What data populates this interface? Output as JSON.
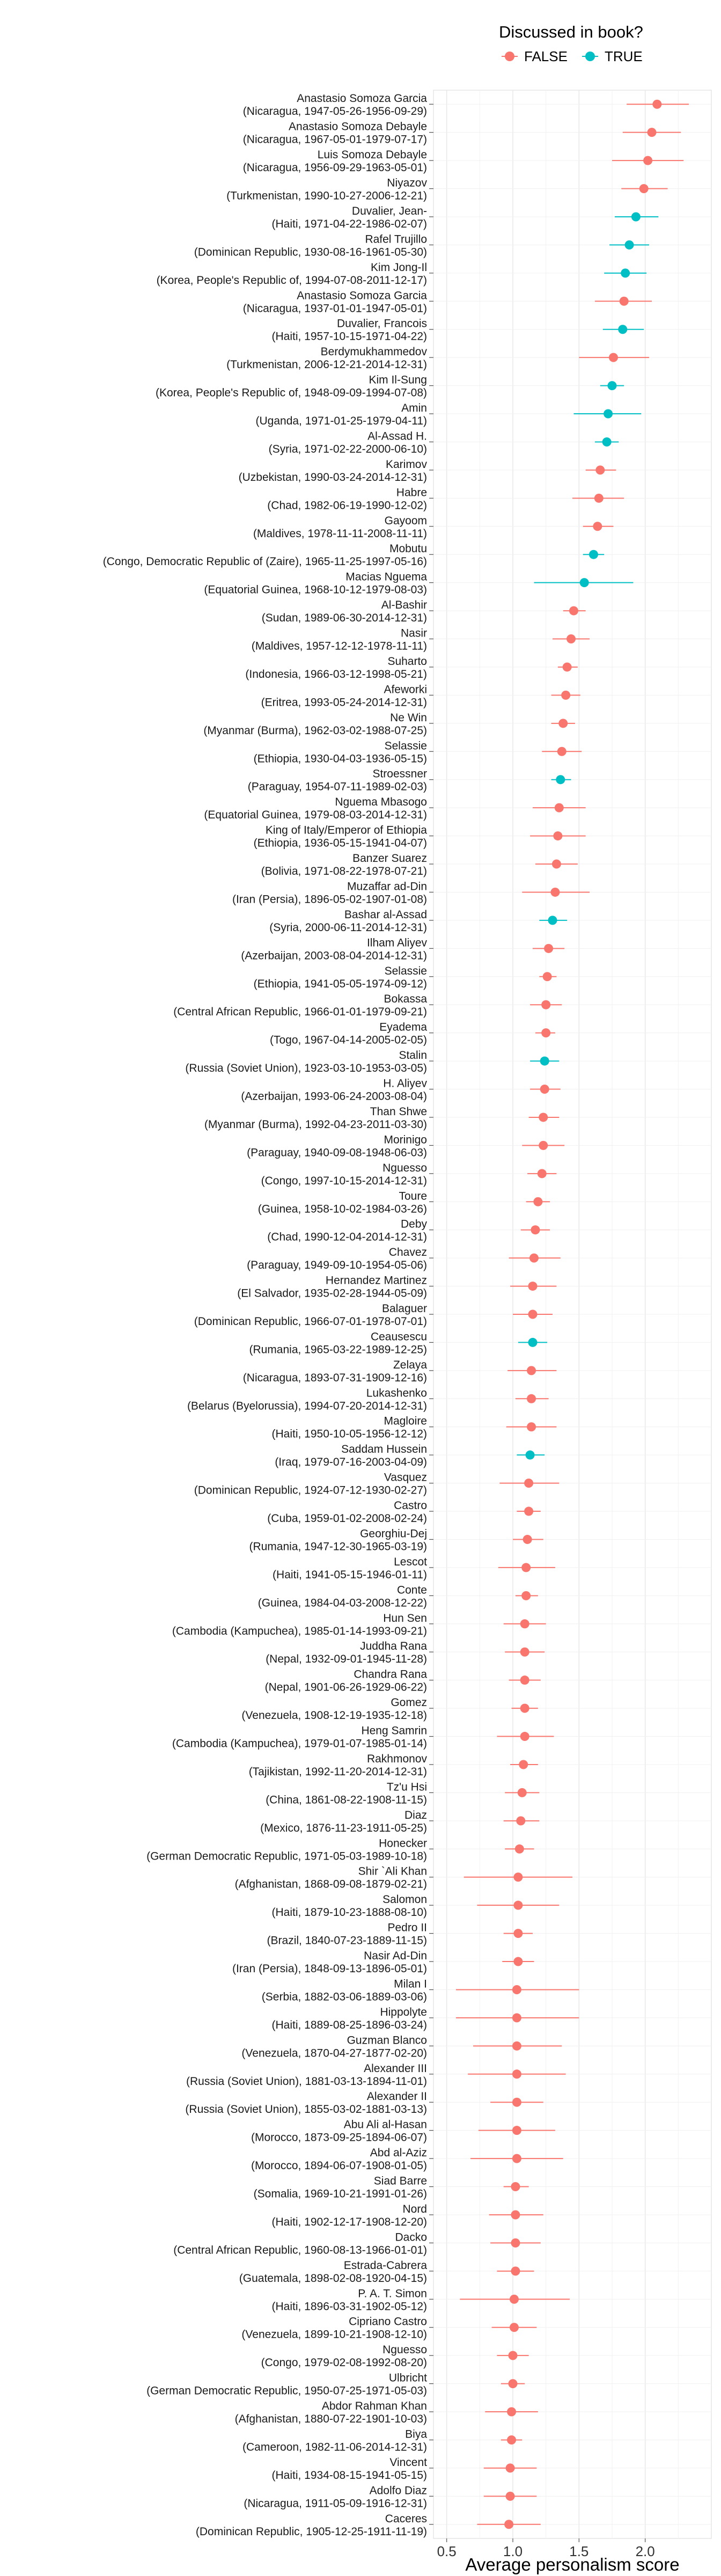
{
  "chart_data": {
    "type": "scatter",
    "xlabel": "Average personalism score",
    "ylabel": "",
    "xlim": [
      0.4,
      2.5
    ],
    "xticks": [
      0.5,
      1.0,
      1.5,
      2.0
    ],
    "xtick_labels": [
      "0.5",
      "1.0",
      "1.5",
      "2.0"
    ],
    "grid": true,
    "legend": {
      "title": "Discussed in book?",
      "placement": "top-center",
      "entries": [
        {
          "label": "FALSE",
          "color": "#F8766D"
        },
        {
          "label": "TRUE",
          "color": "#00BFC4"
        }
      ]
    },
    "points": [
      {
        "name": "Anastasio Somoza Garcia",
        "detail": "(Nicaragua, 1947-05-26-1956-09-29)",
        "x": 2.09,
        "lo": 1.86,
        "hi": 2.33,
        "discussed": "FALSE"
      },
      {
        "name": "Anastasio Somoza Debayle",
        "detail": "(Nicaragua, 1967-05-01-1979-07-17)",
        "x": 2.05,
        "lo": 1.83,
        "hi": 2.27,
        "discussed": "FALSE"
      },
      {
        "name": "Luis Somoza Debayle",
        "detail": "(Nicaragua, 1956-09-29-1963-05-01)",
        "x": 2.02,
        "lo": 1.75,
        "hi": 2.29,
        "discussed": "FALSE"
      },
      {
        "name": "Niyazov",
        "detail": "(Turkmenistan, 1990-10-27-2006-12-21)",
        "x": 1.99,
        "lo": 1.82,
        "hi": 2.17,
        "discussed": "FALSE"
      },
      {
        "name": "Duvalier, Jean-",
        "detail": "(Haiti, 1971-04-22-1986-02-07)",
        "x": 1.93,
        "lo": 1.77,
        "hi": 2.1,
        "discussed": "TRUE"
      },
      {
        "name": "Rafel Trujillo",
        "detail": "(Dominican Republic, 1930-08-16-1961-05-30)",
        "x": 1.88,
        "lo": 1.73,
        "hi": 2.03,
        "discussed": "TRUE"
      },
      {
        "name": "Kim Jong-Il",
        "detail": "(Korea, People's Republic of, 1994-07-08-2011-12-17)",
        "x": 1.85,
        "lo": 1.69,
        "hi": 2.01,
        "discussed": "TRUE"
      },
      {
        "name": "Anastasio Somoza Garcia",
        "detail": "(Nicaragua, 1937-01-01-1947-05-01)",
        "x": 1.84,
        "lo": 1.62,
        "hi": 2.05,
        "discussed": "FALSE"
      },
      {
        "name": "Duvalier, Francois",
        "detail": "(Haiti, 1957-10-15-1971-04-22)",
        "x": 1.83,
        "lo": 1.68,
        "hi": 1.99,
        "discussed": "TRUE"
      },
      {
        "name": "Berdymukhammedov",
        "detail": "(Turkmenistan, 2006-12-21-2014-12-31)",
        "x": 1.76,
        "lo": 1.5,
        "hi": 2.03,
        "discussed": "FALSE"
      },
      {
        "name": "Kim Il-Sung",
        "detail": "(Korea, People's Republic of, 1948-09-09-1994-07-08)",
        "x": 1.75,
        "lo": 1.66,
        "hi": 1.84,
        "discussed": "TRUE"
      },
      {
        "name": "Amin",
        "detail": "(Uganda, 1971-01-25-1979-04-11)",
        "x": 1.72,
        "lo": 1.46,
        "hi": 1.97,
        "discussed": "TRUE"
      },
      {
        "name": "Al-Assad H.",
        "detail": "(Syria, 1971-02-22-2000-06-10)",
        "x": 1.71,
        "lo": 1.62,
        "hi": 1.8,
        "discussed": "TRUE"
      },
      {
        "name": "Karimov",
        "detail": "(Uzbekistan, 1990-03-24-2014-12-31)",
        "x": 1.66,
        "lo": 1.55,
        "hi": 1.78,
        "discussed": "FALSE"
      },
      {
        "name": "Habre",
        "detail": "(Chad, 1982-06-19-1990-12-02)",
        "x": 1.65,
        "lo": 1.45,
        "hi": 1.84,
        "discussed": "FALSE"
      },
      {
        "name": "Gayoom",
        "detail": "(Maldives, 1978-11-11-2008-11-11)",
        "x": 1.64,
        "lo": 1.53,
        "hi": 1.76,
        "discussed": "FALSE"
      },
      {
        "name": "Mobutu",
        "detail": "(Congo, Democratic Republic of (Zaire), 1965-11-25-1997-05-16)",
        "x": 1.61,
        "lo": 1.53,
        "hi": 1.69,
        "discussed": "TRUE"
      },
      {
        "name": "Macias Nguema",
        "detail": "(Equatorial Guinea, 1968-10-12-1979-08-03)",
        "x": 1.54,
        "lo": 1.16,
        "hi": 1.91,
        "discussed": "TRUE"
      },
      {
        "name": "Al-Bashir",
        "detail": "(Sudan, 1989-06-30-2014-12-31)",
        "x": 1.46,
        "lo": 1.38,
        "hi": 1.55,
        "discussed": "FALSE"
      },
      {
        "name": "Nasir",
        "detail": "(Maldives, 1957-12-12-1978-11-11)",
        "x": 1.44,
        "lo": 1.3,
        "hi": 1.58,
        "discussed": "FALSE"
      },
      {
        "name": "Suharto",
        "detail": "(Indonesia, 1966-03-12-1998-05-21)",
        "x": 1.41,
        "lo": 1.34,
        "hi": 1.49,
        "discussed": "FALSE"
      },
      {
        "name": "Afeworki",
        "detail": "(Eritrea, 1993-05-24-2014-12-31)",
        "x": 1.4,
        "lo": 1.29,
        "hi": 1.51,
        "discussed": "FALSE"
      },
      {
        "name": "Ne Win",
        "detail": "(Myanmar (Burma), 1962-03-02-1988-07-25)",
        "x": 1.38,
        "lo": 1.29,
        "hi": 1.47,
        "discussed": "FALSE"
      },
      {
        "name": "Selassie",
        "detail": "(Ethiopia, 1930-04-03-1936-05-15)",
        "x": 1.37,
        "lo": 1.22,
        "hi": 1.52,
        "discussed": "FALSE"
      },
      {
        "name": "Stroessner",
        "detail": "(Paraguay, 1954-07-11-1989-02-03)",
        "x": 1.36,
        "lo": 1.29,
        "hi": 1.44,
        "discussed": "TRUE"
      },
      {
        "name": "Nguema Mbasogo",
        "detail": "(Equatorial Guinea, 1979-08-03-2014-12-31)",
        "x": 1.35,
        "lo": 1.15,
        "hi": 1.55,
        "discussed": "FALSE"
      },
      {
        "name": "King of Italy/Emperor of Ethiopia",
        "detail": "(Ethiopia, 1936-05-15-1941-04-07)",
        "x": 1.34,
        "lo": 1.13,
        "hi": 1.55,
        "discussed": "FALSE"
      },
      {
        "name": "Banzer Suarez",
        "detail": "(Bolivia, 1971-08-22-1978-07-21)",
        "x": 1.33,
        "lo": 1.17,
        "hi": 1.49,
        "discussed": "FALSE"
      },
      {
        "name": "Muzaffar ad-Din",
        "detail": "(Iran (Persia), 1896-05-02-1907-01-08)",
        "x": 1.32,
        "lo": 1.07,
        "hi": 1.58,
        "discussed": "FALSE"
      },
      {
        "name": "Bashar al-Assad",
        "detail": "(Syria, 2000-06-11-2014-12-31)",
        "x": 1.3,
        "lo": 1.2,
        "hi": 1.41,
        "discussed": "TRUE"
      },
      {
        "name": "Ilham Aliyev",
        "detail": "(Azerbaijan, 2003-08-04-2014-12-31)",
        "x": 1.27,
        "lo": 1.15,
        "hi": 1.39,
        "discussed": "FALSE"
      },
      {
        "name": "Selassie",
        "detail": "(Ethiopia, 1941-05-05-1974-09-12)",
        "x": 1.26,
        "lo": 1.2,
        "hi": 1.33,
        "discussed": "FALSE"
      },
      {
        "name": "Bokassa",
        "detail": "(Central African Republic, 1966-01-01-1979-09-21)",
        "x": 1.25,
        "lo": 1.13,
        "hi": 1.37,
        "discussed": "FALSE"
      },
      {
        "name": "Eyadema",
        "detail": "(Togo, 1967-04-14-2005-02-05)",
        "x": 1.25,
        "lo": 1.17,
        "hi": 1.32,
        "discussed": "FALSE"
      },
      {
        "name": "Stalin",
        "detail": "(Russia (Soviet Union), 1923-03-10-1953-03-05)",
        "x": 1.24,
        "lo": 1.13,
        "hi": 1.35,
        "discussed": "TRUE"
      },
      {
        "name": "H. Aliyev",
        "detail": "(Azerbaijan, 1993-06-24-2003-08-04)",
        "x": 1.24,
        "lo": 1.13,
        "hi": 1.36,
        "discussed": "FALSE"
      },
      {
        "name": "Than Shwe",
        "detail": "(Myanmar (Burma), 1992-04-23-2011-03-30)",
        "x": 1.23,
        "lo": 1.12,
        "hi": 1.35,
        "discussed": "FALSE"
      },
      {
        "name": "Morinigo",
        "detail": "(Paraguay, 1940-09-08-1948-06-03)",
        "x": 1.23,
        "lo": 1.07,
        "hi": 1.39,
        "discussed": "FALSE"
      },
      {
        "name": "Nguesso",
        "detail": "(Congo, 1997-10-15-2014-12-31)",
        "x": 1.22,
        "lo": 1.11,
        "hi": 1.33,
        "discussed": "FALSE"
      },
      {
        "name": "Toure",
        "detail": "(Guinea, 1958-10-02-1984-03-26)",
        "x": 1.19,
        "lo": 1.1,
        "hi": 1.28,
        "discussed": "FALSE"
      },
      {
        "name": "Deby",
        "detail": "(Chad, 1990-12-04-2014-12-31)",
        "x": 1.17,
        "lo": 1.06,
        "hi": 1.28,
        "discussed": "FALSE"
      },
      {
        "name": "Chavez",
        "detail": "(Paraguay, 1949-09-10-1954-05-06)",
        "x": 1.16,
        "lo": 0.97,
        "hi": 1.36,
        "discussed": "FALSE"
      },
      {
        "name": "Hernandez Martinez",
        "detail": "(El Salvador, 1935-02-28-1944-05-09)",
        "x": 1.15,
        "lo": 0.98,
        "hi": 1.33,
        "discussed": "FALSE"
      },
      {
        "name": "Balaguer",
        "detail": "(Dominican Republic, 1966-07-01-1978-07-01)",
        "x": 1.15,
        "lo": 1.0,
        "hi": 1.3,
        "discussed": "FALSE"
      },
      {
        "name": "Ceausescu",
        "detail": "(Rumania, 1965-03-22-1989-12-25)",
        "x": 1.15,
        "lo": 1.04,
        "hi": 1.26,
        "discussed": "TRUE"
      },
      {
        "name": "Zelaya",
        "detail": "(Nicaragua, 1893-07-31-1909-12-16)",
        "x": 1.14,
        "lo": 0.96,
        "hi": 1.33,
        "discussed": "FALSE"
      },
      {
        "name": "Lukashenko",
        "detail": "(Belarus (Byelorussia), 1994-07-20-2014-12-31)",
        "x": 1.14,
        "lo": 1.02,
        "hi": 1.27,
        "discussed": "FALSE"
      },
      {
        "name": "Magloire",
        "detail": "(Haiti, 1950-10-05-1956-12-12)",
        "x": 1.14,
        "lo": 0.95,
        "hi": 1.33,
        "discussed": "FALSE"
      },
      {
        "name": "Saddam Hussein",
        "detail": "(Iraq, 1979-07-16-2003-04-09)",
        "x": 1.13,
        "lo": 1.03,
        "hi": 1.24,
        "discussed": "TRUE"
      },
      {
        "name": "Vasquez",
        "detail": "(Dominican Republic, 1924-07-12-1930-02-27)",
        "x": 1.12,
        "lo": 0.9,
        "hi": 1.35,
        "discussed": "FALSE"
      },
      {
        "name": "Castro",
        "detail": "(Cuba, 1959-01-02-2008-02-24)",
        "x": 1.12,
        "lo": 1.03,
        "hi": 1.21,
        "discussed": "FALSE"
      },
      {
        "name": "Georghiu-Dej",
        "detail": "(Rumania, 1947-12-30-1965-03-19)",
        "x": 1.11,
        "lo": 1.0,
        "hi": 1.23,
        "discussed": "FALSE"
      },
      {
        "name": "Lescot",
        "detail": "(Haiti, 1941-05-15-1946-01-11)",
        "x": 1.1,
        "lo": 0.89,
        "hi": 1.32,
        "discussed": "FALSE"
      },
      {
        "name": "Conte",
        "detail": "(Guinea, 1984-04-03-2008-12-22)",
        "x": 1.1,
        "lo": 1.02,
        "hi": 1.19,
        "discussed": "FALSE"
      },
      {
        "name": "Hun Sen",
        "detail": "(Cambodia (Kampuchea), 1985-01-14-1993-09-21)",
        "x": 1.09,
        "lo": 0.93,
        "hi": 1.25,
        "discussed": "FALSE"
      },
      {
        "name": "Juddha Rana",
        "detail": "(Nepal, 1932-09-01-1945-11-28)",
        "x": 1.09,
        "lo": 0.94,
        "hi": 1.24,
        "discussed": "FALSE"
      },
      {
        "name": "Chandra Rana",
        "detail": "(Nepal, 1901-06-26-1929-06-22)",
        "x": 1.09,
        "lo": 0.97,
        "hi": 1.21,
        "discussed": "FALSE"
      },
      {
        "name": "Gomez",
        "detail": "(Venezuela, 1908-12-19-1935-12-18)",
        "x": 1.09,
        "lo": 0.99,
        "hi": 1.19,
        "discussed": "FALSE"
      },
      {
        "name": "Heng Samrin",
        "detail": "(Cambodia (Kampuchea), 1979-01-07-1985-01-14)",
        "x": 1.09,
        "lo": 0.88,
        "hi": 1.31,
        "discussed": "FALSE"
      },
      {
        "name": "Rakhmonov",
        "detail": "(Tajikistan, 1992-11-20-2014-12-31)",
        "x": 1.08,
        "lo": 0.98,
        "hi": 1.19,
        "discussed": "FALSE"
      },
      {
        "name": "Tz'u Hsi",
        "detail": "(China, 1861-08-22-1908-11-15)",
        "x": 1.07,
        "lo": 0.94,
        "hi": 1.2,
        "discussed": "FALSE"
      },
      {
        "name": "Diaz",
        "detail": "(Mexico, 1876-11-23-1911-05-25)",
        "x": 1.06,
        "lo": 0.93,
        "hi": 1.2,
        "discussed": "FALSE"
      },
      {
        "name": "Honecker",
        "detail": "(German Democratic Republic, 1971-05-03-1989-10-18)",
        "x": 1.05,
        "lo": 0.94,
        "hi": 1.16,
        "discussed": "FALSE"
      },
      {
        "name": "Shir `Ali Khan",
        "detail": "(Afghanistan, 1868-09-08-1879-02-21)",
        "x": 1.04,
        "lo": 0.63,
        "hi": 1.45,
        "discussed": "FALSE"
      },
      {
        "name": "Salomon",
        "detail": "(Haiti, 1879-10-23-1888-08-10)",
        "x": 1.04,
        "lo": 0.73,
        "hi": 1.35,
        "discussed": "FALSE"
      },
      {
        "name": "Pedro II",
        "detail": "(Brazil, 1840-07-23-1889-11-15)",
        "x": 1.04,
        "lo": 0.93,
        "hi": 1.15,
        "discussed": "FALSE"
      },
      {
        "name": "Nasir Ad-Din",
        "detail": "(Iran (Persia), 1848-09-13-1896-05-01)",
        "x": 1.04,
        "lo": 0.92,
        "hi": 1.16,
        "discussed": "FALSE"
      },
      {
        "name": "Milan I",
        "detail": "(Serbia, 1882-03-06-1889-03-06)",
        "x": 1.03,
        "lo": 0.57,
        "hi": 1.5,
        "discussed": "FALSE"
      },
      {
        "name": "Hippolyte",
        "detail": "(Haiti, 1889-08-25-1896-03-24)",
        "x": 1.03,
        "lo": 0.57,
        "hi": 1.5,
        "discussed": "FALSE"
      },
      {
        "name": "Guzman Blanco",
        "detail": "(Venezuela, 1870-04-27-1877-02-20)",
        "x": 1.03,
        "lo": 0.7,
        "hi": 1.37,
        "discussed": "FALSE"
      },
      {
        "name": "Alexander III",
        "detail": "(Russia (Soviet Union), 1881-03-13-1894-11-01)",
        "x": 1.03,
        "lo": 0.66,
        "hi": 1.4,
        "discussed": "FALSE"
      },
      {
        "name": "Alexander II",
        "detail": "(Russia (Soviet Union), 1855-03-02-1881-03-13)",
        "x": 1.03,
        "lo": 0.83,
        "hi": 1.23,
        "discussed": "FALSE"
      },
      {
        "name": "Abu Ali al-Hasan",
        "detail": "(Morocco, 1873-09-25-1894-06-07)",
        "x": 1.03,
        "lo": 0.74,
        "hi": 1.32,
        "discussed": "FALSE"
      },
      {
        "name": "Abd al-Aziz",
        "detail": "(Morocco, 1894-06-07-1908-01-05)",
        "x": 1.03,
        "lo": 0.68,
        "hi": 1.38,
        "discussed": "FALSE"
      },
      {
        "name": "Siad Barre",
        "detail": "(Somalia, 1969-10-21-1991-01-26)",
        "x": 1.02,
        "lo": 0.93,
        "hi": 1.12,
        "discussed": "FALSE"
      },
      {
        "name": "Nord",
        "detail": "(Haiti, 1902-12-17-1908-12-20)",
        "x": 1.02,
        "lo": 0.82,
        "hi": 1.23,
        "discussed": "FALSE"
      },
      {
        "name": "Dacko",
        "detail": "(Central African Republic, 1960-08-13-1966-01-01)",
        "x": 1.02,
        "lo": 0.83,
        "hi": 1.21,
        "discussed": "FALSE"
      },
      {
        "name": "Estrada-Cabrera",
        "detail": "(Guatemala, 1898-02-08-1920-04-15)",
        "x": 1.02,
        "lo": 0.88,
        "hi": 1.16,
        "discussed": "FALSE"
      },
      {
        "name": "P. A. T. Simon",
        "detail": "(Haiti, 1896-03-31-1902-05-12)",
        "x": 1.01,
        "lo": 0.6,
        "hi": 1.43,
        "discussed": "FALSE"
      },
      {
        "name": "Cipriano Castro",
        "detail": "(Venezuela, 1899-10-21-1908-12-10)",
        "x": 1.01,
        "lo": 0.84,
        "hi": 1.18,
        "discussed": "FALSE"
      },
      {
        "name": "Nguesso",
        "detail": "(Congo, 1979-02-08-1992-08-20)",
        "x": 1.0,
        "lo": 0.88,
        "hi": 1.12,
        "discussed": "FALSE"
      },
      {
        "name": "Ulbricht",
        "detail": "(German Democratic Republic, 1950-07-25-1971-05-03)",
        "x": 1.0,
        "lo": 0.91,
        "hi": 1.09,
        "discussed": "FALSE"
      },
      {
        "name": "Abdor Rahman Khan",
        "detail": "(Afghanistan, 1880-07-22-1901-10-03)",
        "x": 0.99,
        "lo": 0.79,
        "hi": 1.19,
        "discussed": "FALSE"
      },
      {
        "name": "Biya",
        "detail": "(Cameroon, 1982-11-06-2014-12-31)",
        "x": 0.99,
        "lo": 0.91,
        "hi": 1.07,
        "discussed": "FALSE"
      },
      {
        "name": "Vincent",
        "detail": "(Haiti, 1934-08-15-1941-05-15)",
        "x": 0.98,
        "lo": 0.78,
        "hi": 1.18,
        "discussed": "FALSE"
      },
      {
        "name": "Adolfo Diaz",
        "detail": "(Nicaragua, 1911-05-09-1916-12-31)",
        "x": 0.98,
        "lo": 0.78,
        "hi": 1.18,
        "discussed": "FALSE"
      },
      {
        "name": "Caceres",
        "detail": "(Dominican Republic, 1905-12-25-1911-11-19)",
        "x": 0.97,
        "lo": 0.73,
        "hi": 1.21,
        "discussed": "FALSE"
      }
    ]
  }
}
